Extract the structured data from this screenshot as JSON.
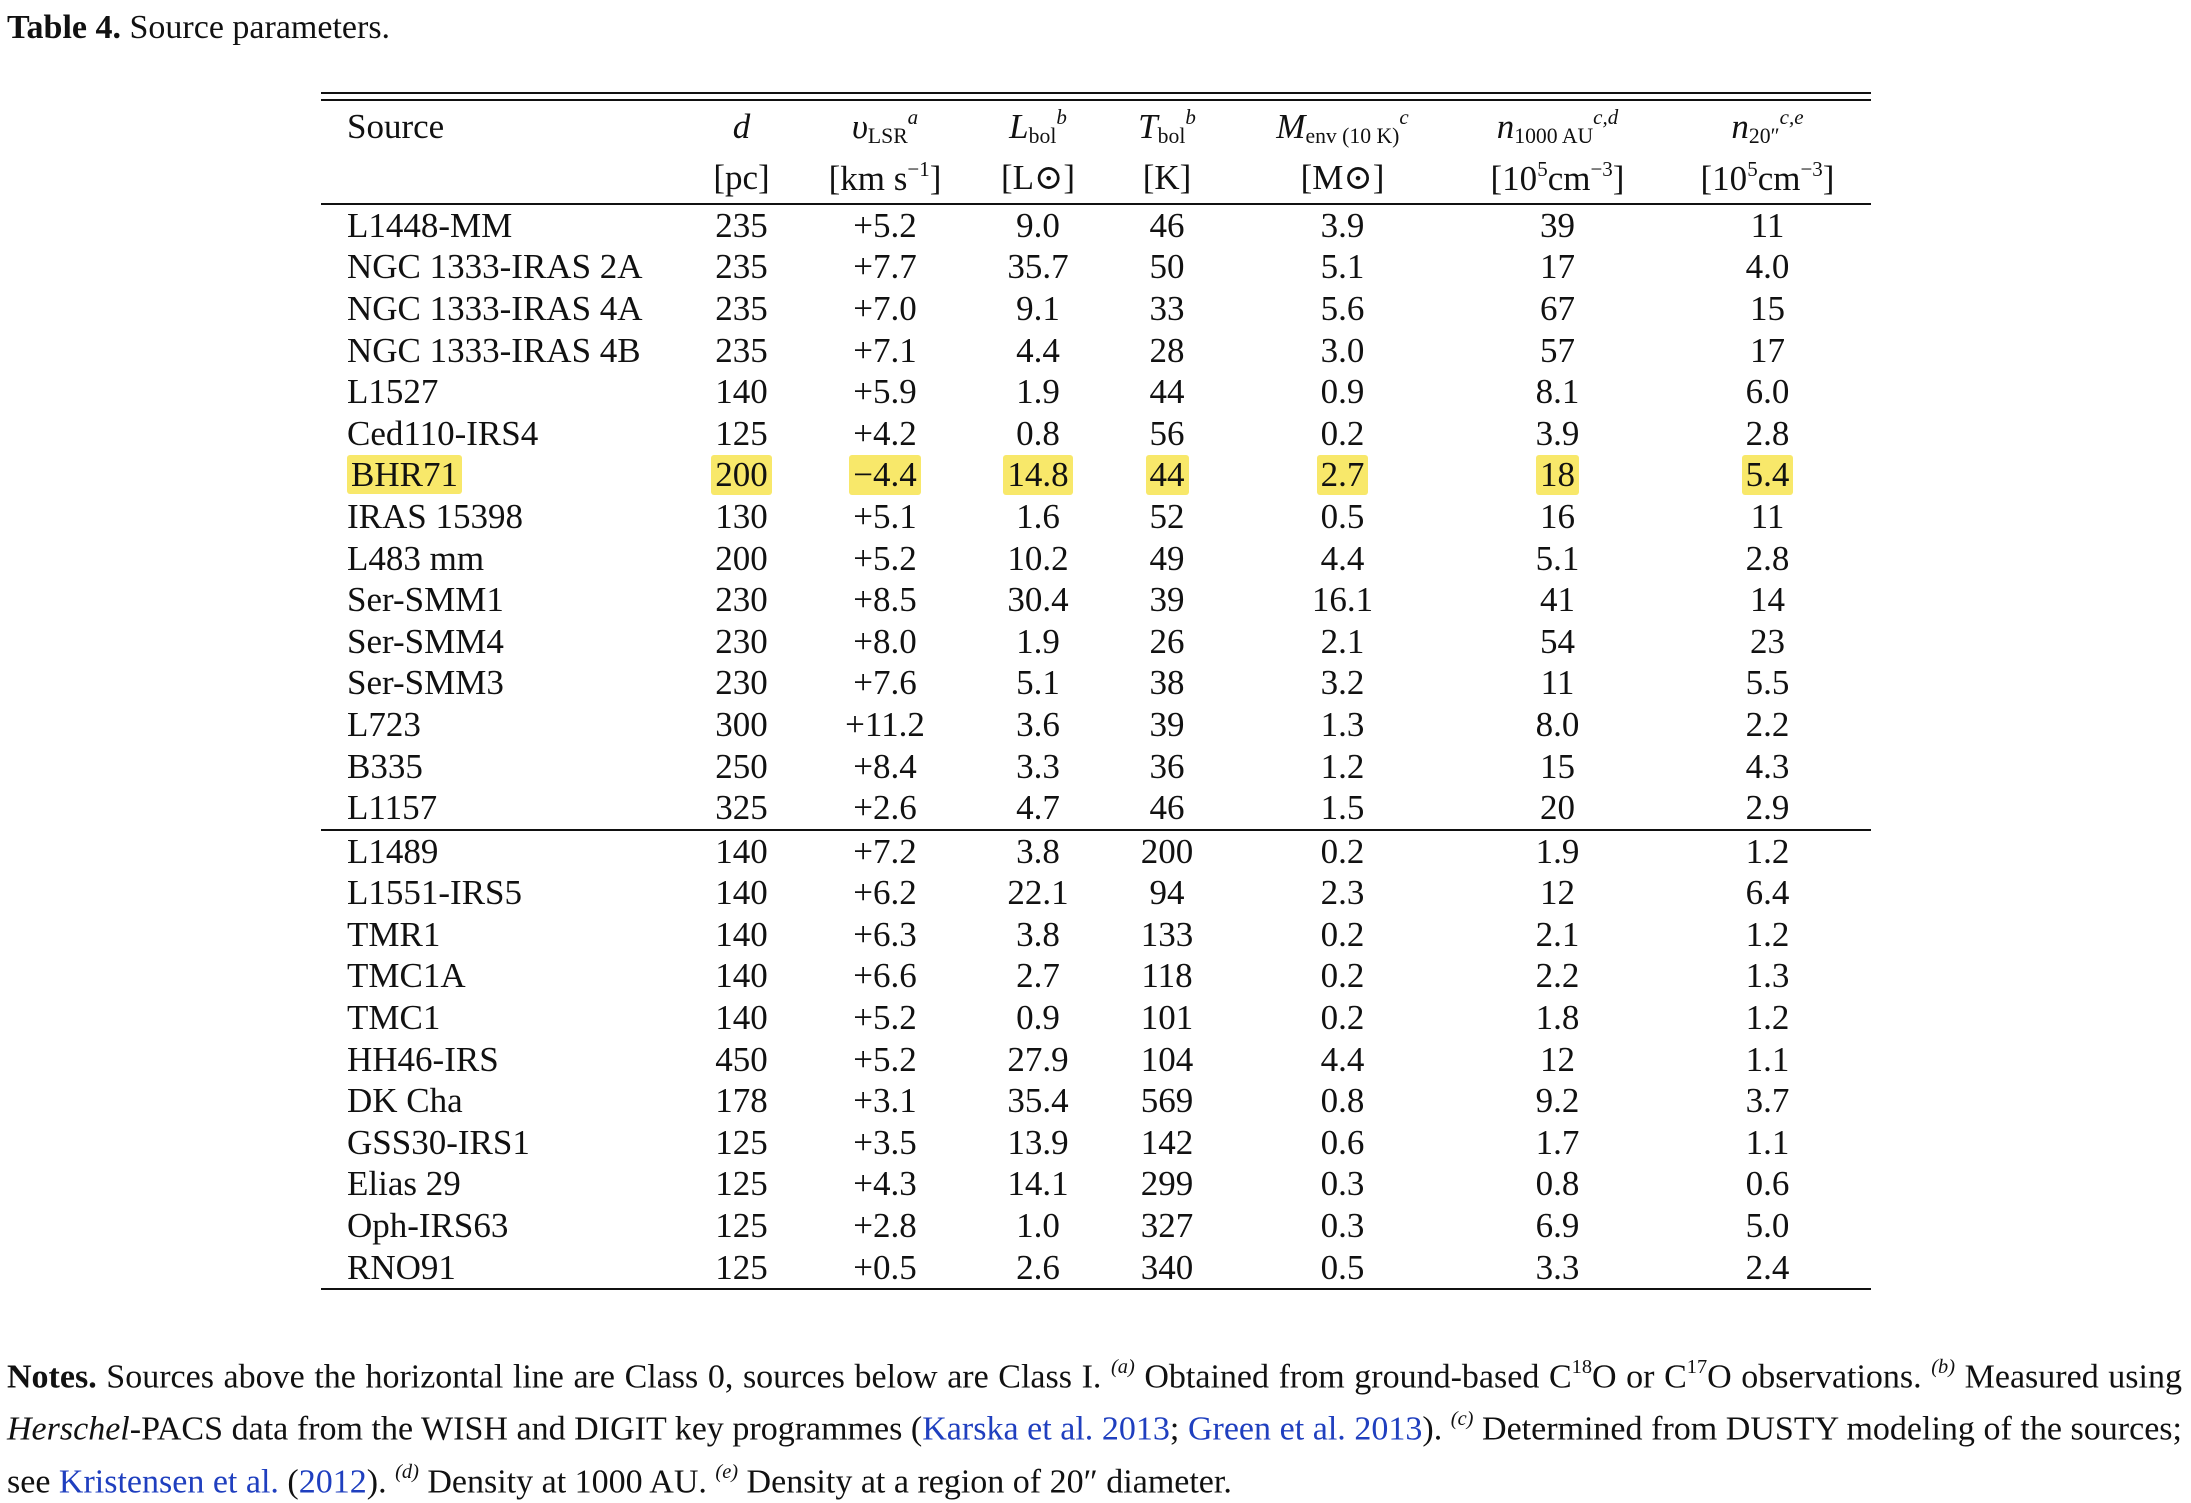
{
  "caption": {
    "label": "Table 4.",
    "text": "Source parameters."
  },
  "table": {
    "header": {
      "source": "Source",
      "d": "d",
      "d_unit": "[pc]",
      "vlsr_sym": "υ",
      "vlsr_sub": "LSR",
      "vlsr_note": "a",
      "vlsr_unit_pre": "[km s",
      "vlsr_unit_exp": "−1",
      "vlsr_unit_post": "]",
      "lbol_sym": "L",
      "lbol_sub": "bol",
      "lbol_note": "b",
      "lbol_unit": "[L⊙]",
      "tbol_sym": "T",
      "tbol_sub": "bol",
      "tbol_note": "b",
      "tbol_unit": "[K]",
      "menv_sym": "M",
      "menv_sub": "env (10 K)",
      "menv_note": "c",
      "menv_unit": "[M⊙]",
      "n1000_sym": "n",
      "n1000_sub": "1000 AU",
      "n1000_note": "c,d",
      "n1000_unit_pre": "[10",
      "n1000_unit_exp": "5",
      "n1000_unit_mid": " cm",
      "n1000_unit_exp2": "−3",
      "n1000_unit_post": "]",
      "n20_sym": "n",
      "n20_sub": "20″",
      "n20_note": "c,e",
      "n20_unit_pre": "[10",
      "n20_unit_exp": "5",
      "n20_unit_mid": " cm",
      "n20_unit_exp2": "−3",
      "n20_unit_post": "]"
    },
    "class0_rows": [
      [
        "L1448-MM",
        "235",
        "+5.2",
        "9.0",
        "46",
        "3.9",
        "39",
        "11"
      ],
      [
        "NGC 1333-IRAS 2A",
        "235",
        "+7.7",
        "35.7",
        "50",
        "5.1",
        "17",
        "4.0"
      ],
      [
        "NGC 1333-IRAS 4A",
        "235",
        "+7.0",
        "9.1",
        "33",
        "5.6",
        "67",
        "15"
      ],
      [
        "NGC 1333-IRAS 4B",
        "235",
        "+7.1",
        "4.4",
        "28",
        "3.0",
        "57",
        "17"
      ],
      [
        "L1527",
        "140",
        "+5.9",
        "1.9",
        "44",
        "0.9",
        "8.1",
        "6.0"
      ],
      [
        "Ced110-IRS4",
        "125",
        "+4.2",
        "0.8",
        "56",
        "0.2",
        "3.9",
        "2.8"
      ],
      [
        "BHR71",
        "200",
        "−4.4",
        "14.8",
        "44",
        "2.7",
        "18",
        "5.4"
      ],
      [
        "IRAS 15398",
        "130",
        "+5.1",
        "1.6",
        "52",
        "0.5",
        "16",
        "11"
      ],
      [
        "L483 mm",
        "200",
        "+5.2",
        "10.2",
        "49",
        "4.4",
        "5.1",
        "2.8"
      ],
      [
        "Ser-SMM1",
        "230",
        "+8.5",
        "30.4",
        "39",
        "16.1",
        "41",
        "14"
      ],
      [
        "Ser-SMM4",
        "230",
        "+8.0",
        "1.9",
        "26",
        "2.1",
        "54",
        "23"
      ],
      [
        "Ser-SMM3",
        "230",
        "+7.6",
        "5.1",
        "38",
        "3.2",
        "11",
        "5.5"
      ],
      [
        "L723",
        "300",
        "+11.2",
        "3.6",
        "39",
        "1.3",
        "8.0",
        "2.2"
      ],
      [
        "B335",
        "250",
        "+8.4",
        "3.3",
        "36",
        "1.2",
        "15",
        "4.3"
      ],
      [
        "L1157",
        "325",
        "+2.6",
        "4.7",
        "46",
        "1.5",
        "20",
        "2.9"
      ]
    ],
    "class1_rows": [
      [
        "L1489",
        "140",
        "+7.2",
        "3.8",
        "200",
        "0.2",
        "1.9",
        "1.2"
      ],
      [
        "L1551-IRS5",
        "140",
        "+6.2",
        "22.1",
        "94",
        "2.3",
        "12",
        "6.4"
      ],
      [
        "TMR1",
        "140",
        "+6.3",
        "3.8",
        "133",
        "0.2",
        "2.1",
        "1.2"
      ],
      [
        "TMC1A",
        "140",
        "+6.6",
        "2.7",
        "118",
        "0.2",
        "2.2",
        "1.3"
      ],
      [
        "TMC1",
        "140",
        "+5.2",
        "0.9",
        "101",
        "0.2",
        "1.8",
        "1.2"
      ],
      [
        "HH46-IRS",
        "450",
        "+5.2",
        "27.9",
        "104",
        "4.4",
        "12",
        "1.1"
      ],
      [
        "DK Cha",
        "178",
        "+3.1",
        "35.4",
        "569",
        "0.8",
        "9.2",
        "3.7"
      ],
      [
        "GSS30-IRS1",
        "125",
        "+3.5",
        "13.9",
        "142",
        "0.6",
        "1.7",
        "1.1"
      ],
      [
        "Elias 29",
        "125",
        "+4.3",
        "14.1",
        "299",
        "0.3",
        "0.8",
        "0.6"
      ],
      [
        "Oph-IRS63",
        "125",
        "+2.8",
        "1.0",
        "327",
        "0.3",
        "6.9",
        "5.0"
      ],
      [
        "RNO91",
        "125",
        "+0.5",
        "2.6",
        "340",
        "0.5",
        "3.3",
        "2.4"
      ]
    ],
    "highlighted_source": "BHR71",
    "highlight_color": "#f8e86a"
  },
  "notes": {
    "label": "Notes.",
    "t1": " Sources above the horizontal line are Class 0, sources below are Class I. ",
    "fa": "(a)",
    "t2": " Obtained from ground-based C",
    "iso18": "18",
    "t3": "O or C",
    "iso17": "17",
    "t4": "O observations. ",
    "fb": "(b)",
    "t5": " Measured using ",
    "herschel": "Herschel",
    "t6": "-PACS data from the WISH and DIGIT key programmes (",
    "link1": "Karska et al. 2013",
    "t7": "; ",
    "link2": "Green et al. 2013",
    "t8": "). ",
    "fc": "(c)",
    "t9": " Determined from DUSTY modeling of the sources; see ",
    "link3a": "Kristensen et al.",
    "t10": " (",
    "link3b": "2012",
    "t11": "). ",
    "fd": "(d)",
    "t12": " Density at 1000 AU. ",
    "fe": "(e)",
    "t13": " Density at a region of 20″ diameter.",
    "link_color": "#1f3fbf"
  }
}
